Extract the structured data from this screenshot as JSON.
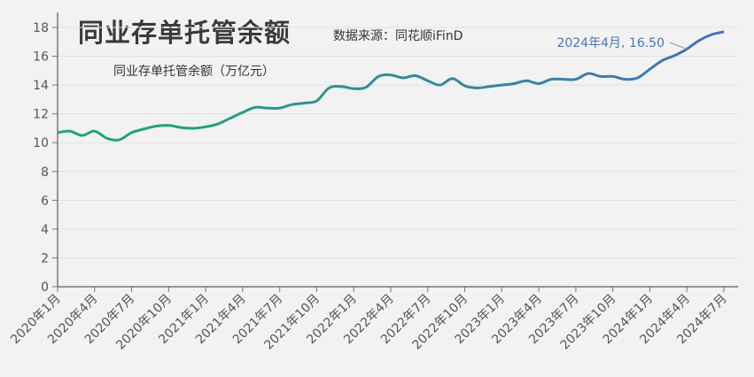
{
  "chart_data": {
    "type": "line",
    "title": "同业存单托管余额",
    "source": "数据来源：同花顺iFinD",
    "xlabel": "",
    "ylabel": "",
    "ylim": [
      0,
      18
    ],
    "yticks": [
      0,
      2,
      4,
      6,
      8,
      10,
      12,
      14,
      16,
      18
    ],
    "grid": true,
    "legend_position": "top-left",
    "xtick_labels": [
      "2020年1月",
      "2020年4月",
      "2020年7月",
      "2020年10月",
      "2021年1月",
      "2021年4月",
      "2021年7月",
      "2021年10月",
      "2022年1月",
      "2022年4月",
      "2022年7月",
      "2022年10月",
      "2023年1月",
      "2023年4月",
      "2023年7月",
      "2023年10月",
      "2024年1月",
      "2024年4月",
      "2024年7月"
    ],
    "series": [
      {
        "name": "同业存单托管余额（万亿元）",
        "start": "2020-01",
        "frequency": "monthly",
        "values": [
          10.7,
          10.8,
          10.5,
          10.8,
          10.3,
          10.2,
          10.7,
          10.95,
          11.15,
          11.2,
          11.05,
          11.0,
          11.1,
          11.3,
          11.7,
          12.1,
          12.45,
          12.4,
          12.4,
          12.65,
          12.75,
          12.9,
          13.8,
          13.9,
          13.75,
          13.85,
          14.6,
          14.7,
          14.5,
          14.65,
          14.3,
          14.0,
          14.45,
          13.95,
          13.8,
          13.9,
          14.0,
          14.1,
          14.3,
          14.1,
          14.4,
          14.4,
          14.4,
          14.8,
          14.6,
          14.6,
          14.4,
          14.5,
          15.1,
          15.7,
          16.05,
          16.5,
          17.1,
          17.5,
          17.7
        ],
        "color_start": "#1fa872",
        "color_end": "#4472b8"
      }
    ],
    "annotation": {
      "text": "2024年4月, 16.50",
      "index": 51,
      "value": 16.5
    }
  }
}
